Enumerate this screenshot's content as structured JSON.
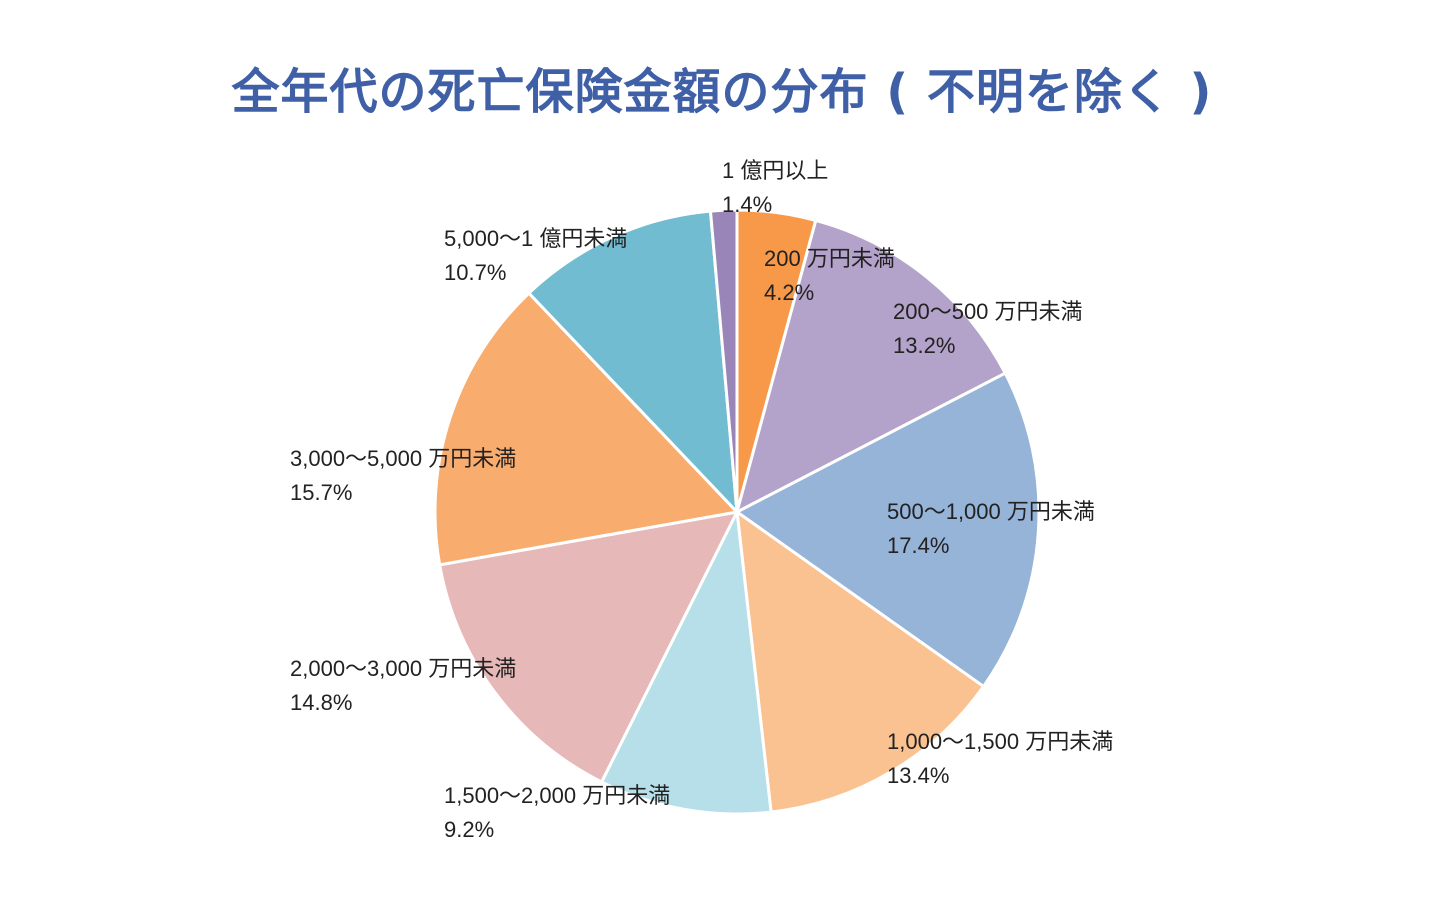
{
  "chart_data": {
    "type": "pie",
    "title": "全年代の死亡保険金額の分布 ( 不明を除く )",
    "slices": [
      {
        "name": "200 万円未満",
        "value": 4.2,
        "label": "4.2%",
        "color": "#f8994a"
      },
      {
        "name": "200〜500 万円未満",
        "value": 13.2,
        "label": "13.2%",
        "color": "#b3a2c9"
      },
      {
        "name": "500〜1,000 万円未満",
        "value": 17.4,
        "label": "17.4%",
        "color": "#96b3d8"
      },
      {
        "name": "1,000〜1,500 万円未満",
        "value": 13.4,
        "label": "13.4%",
        "color": "#fac291"
      },
      {
        "name": "1,500〜2,000 万円未満",
        "value": 9.2,
        "label": "9.2%",
        "color": "#b7dfe9"
      },
      {
        "name": "2,000〜3,000 万円未満",
        "value": 14.8,
        "label": "14.8%",
        "color": "#e7b8b8"
      },
      {
        "name": "3,000〜5,000 万円未満",
        "value": 15.7,
        "label": "15.7%",
        "color": "#f8ac6d"
      },
      {
        "name": "5,000〜1 億円未満",
        "value": 10.7,
        "label": "10.7%",
        "color": "#72bcd1"
      },
      {
        "name": "1 億円以上",
        "value": 1.4,
        "label": "1.4%",
        "color": "#9a85b8"
      }
    ],
    "start_angle": "12 o'clock",
    "direction": "clockwise",
    "legend": "none"
  }
}
